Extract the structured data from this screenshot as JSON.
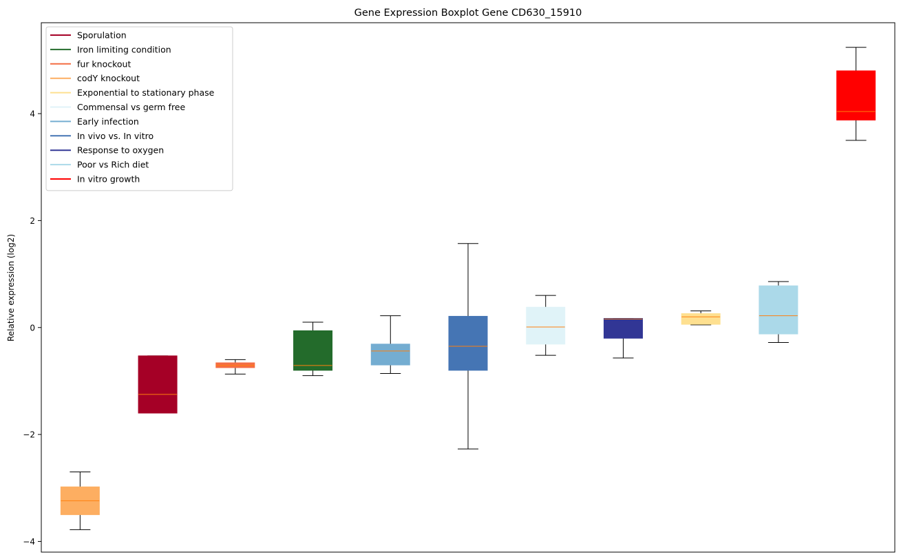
{
  "chart_data": {
    "type": "boxplot",
    "title": "Gene Expression Boxplot Gene CD630_15910",
    "xlabel": "",
    "ylabel": "Relative expression (log2)",
    "ylim": [
      -4.2,
      5.7
    ],
    "yticks": [
      {
        "value": -4,
        "label": "−4"
      },
      {
        "value": -2,
        "label": "−2"
      },
      {
        "value": 0,
        "label": "0"
      },
      {
        "value": 2,
        "label": "2"
      },
      {
        "value": 4,
        "label": "4"
      }
    ],
    "median_color": "#ff7f0e",
    "legend_position": "top-left",
    "series": [
      {
        "name": "codY knockout",
        "color": "#fdae61",
        "whisker_low": -3.78,
        "q1": -3.5,
        "median": -3.24,
        "q3": -2.98,
        "whisker_high": -2.7
      },
      {
        "name": "Sporulation",
        "color": "#a50026",
        "whisker_low": -1.6,
        "q1": -1.6,
        "median": -1.25,
        "q3": -0.53,
        "whisker_high": -0.53
      },
      {
        "name": "fur knockout",
        "color": "#f46d43",
        "whisker_low": -0.87,
        "q1": -0.75,
        "median": -0.71,
        "q3": -0.66,
        "whisker_high": -0.6
      },
      {
        "name": "Iron limiting condition",
        "color": "#236b2b",
        "whisker_low": -0.9,
        "q1": -0.8,
        "median": -0.71,
        "q3": -0.06,
        "whisker_high": 0.1
      },
      {
        "name": "Early infection",
        "color": "#74add1",
        "whisker_low": -0.86,
        "q1": -0.7,
        "median": -0.44,
        "q3": -0.31,
        "whisker_high": 0.22
      },
      {
        "name": "In vivo vs. In vitro",
        "color": "#4575b4",
        "whisker_low": -2.27,
        "q1": -0.8,
        "median": -0.35,
        "q3": 0.21,
        "whisker_high": 1.57
      },
      {
        "name": "Commensal vs germ free",
        "color": "#e0f3f8",
        "whisker_low": -0.52,
        "q1": -0.31,
        "median": 0.01,
        "q3": 0.38,
        "whisker_high": 0.6
      },
      {
        "name": "Response to oxygen",
        "color": "#313695",
        "whisker_low": -0.57,
        "q1": -0.2,
        "median": 0.16,
        "q3": 0.17,
        "whisker_high": 0.17
      },
      {
        "name": "Exponential to stationary phase",
        "color": "#fee090",
        "whisker_low": 0.05,
        "q1": 0.06,
        "median": 0.2,
        "q3": 0.26,
        "whisker_high": 0.31
      },
      {
        "name": "Poor vs Rich diet",
        "color": "#abd9e9",
        "whisker_low": -0.28,
        "q1": -0.12,
        "median": 0.22,
        "q3": 0.78,
        "whisker_high": 0.86
      },
      {
        "name": "In vitro growth",
        "color": "#ff0000",
        "whisker_low": 3.5,
        "q1": 3.88,
        "median": 4.04,
        "q3": 4.8,
        "whisker_high": 5.24
      }
    ],
    "legend": [
      {
        "name": "Sporulation",
        "color": "#a50026"
      },
      {
        "name": "Iron limiting condition",
        "color": "#236b2b"
      },
      {
        "name": "fur knockout",
        "color": "#f46d43"
      },
      {
        "name": "codY knockout",
        "color": "#fdae61"
      },
      {
        "name": "Exponential to stationary phase",
        "color": "#fee090"
      },
      {
        "name": "Commensal vs germ free",
        "color": "#e0f3f8"
      },
      {
        "name": "Early infection",
        "color": "#74add1"
      },
      {
        "name": "In vivo vs. In vitro",
        "color": "#4575b4"
      },
      {
        "name": "Response to oxygen",
        "color": "#313695"
      },
      {
        "name": "Poor vs Rich diet",
        "color": "#abd9e9"
      },
      {
        "name": "In vitro growth",
        "color": "#ff0000"
      }
    ]
  }
}
